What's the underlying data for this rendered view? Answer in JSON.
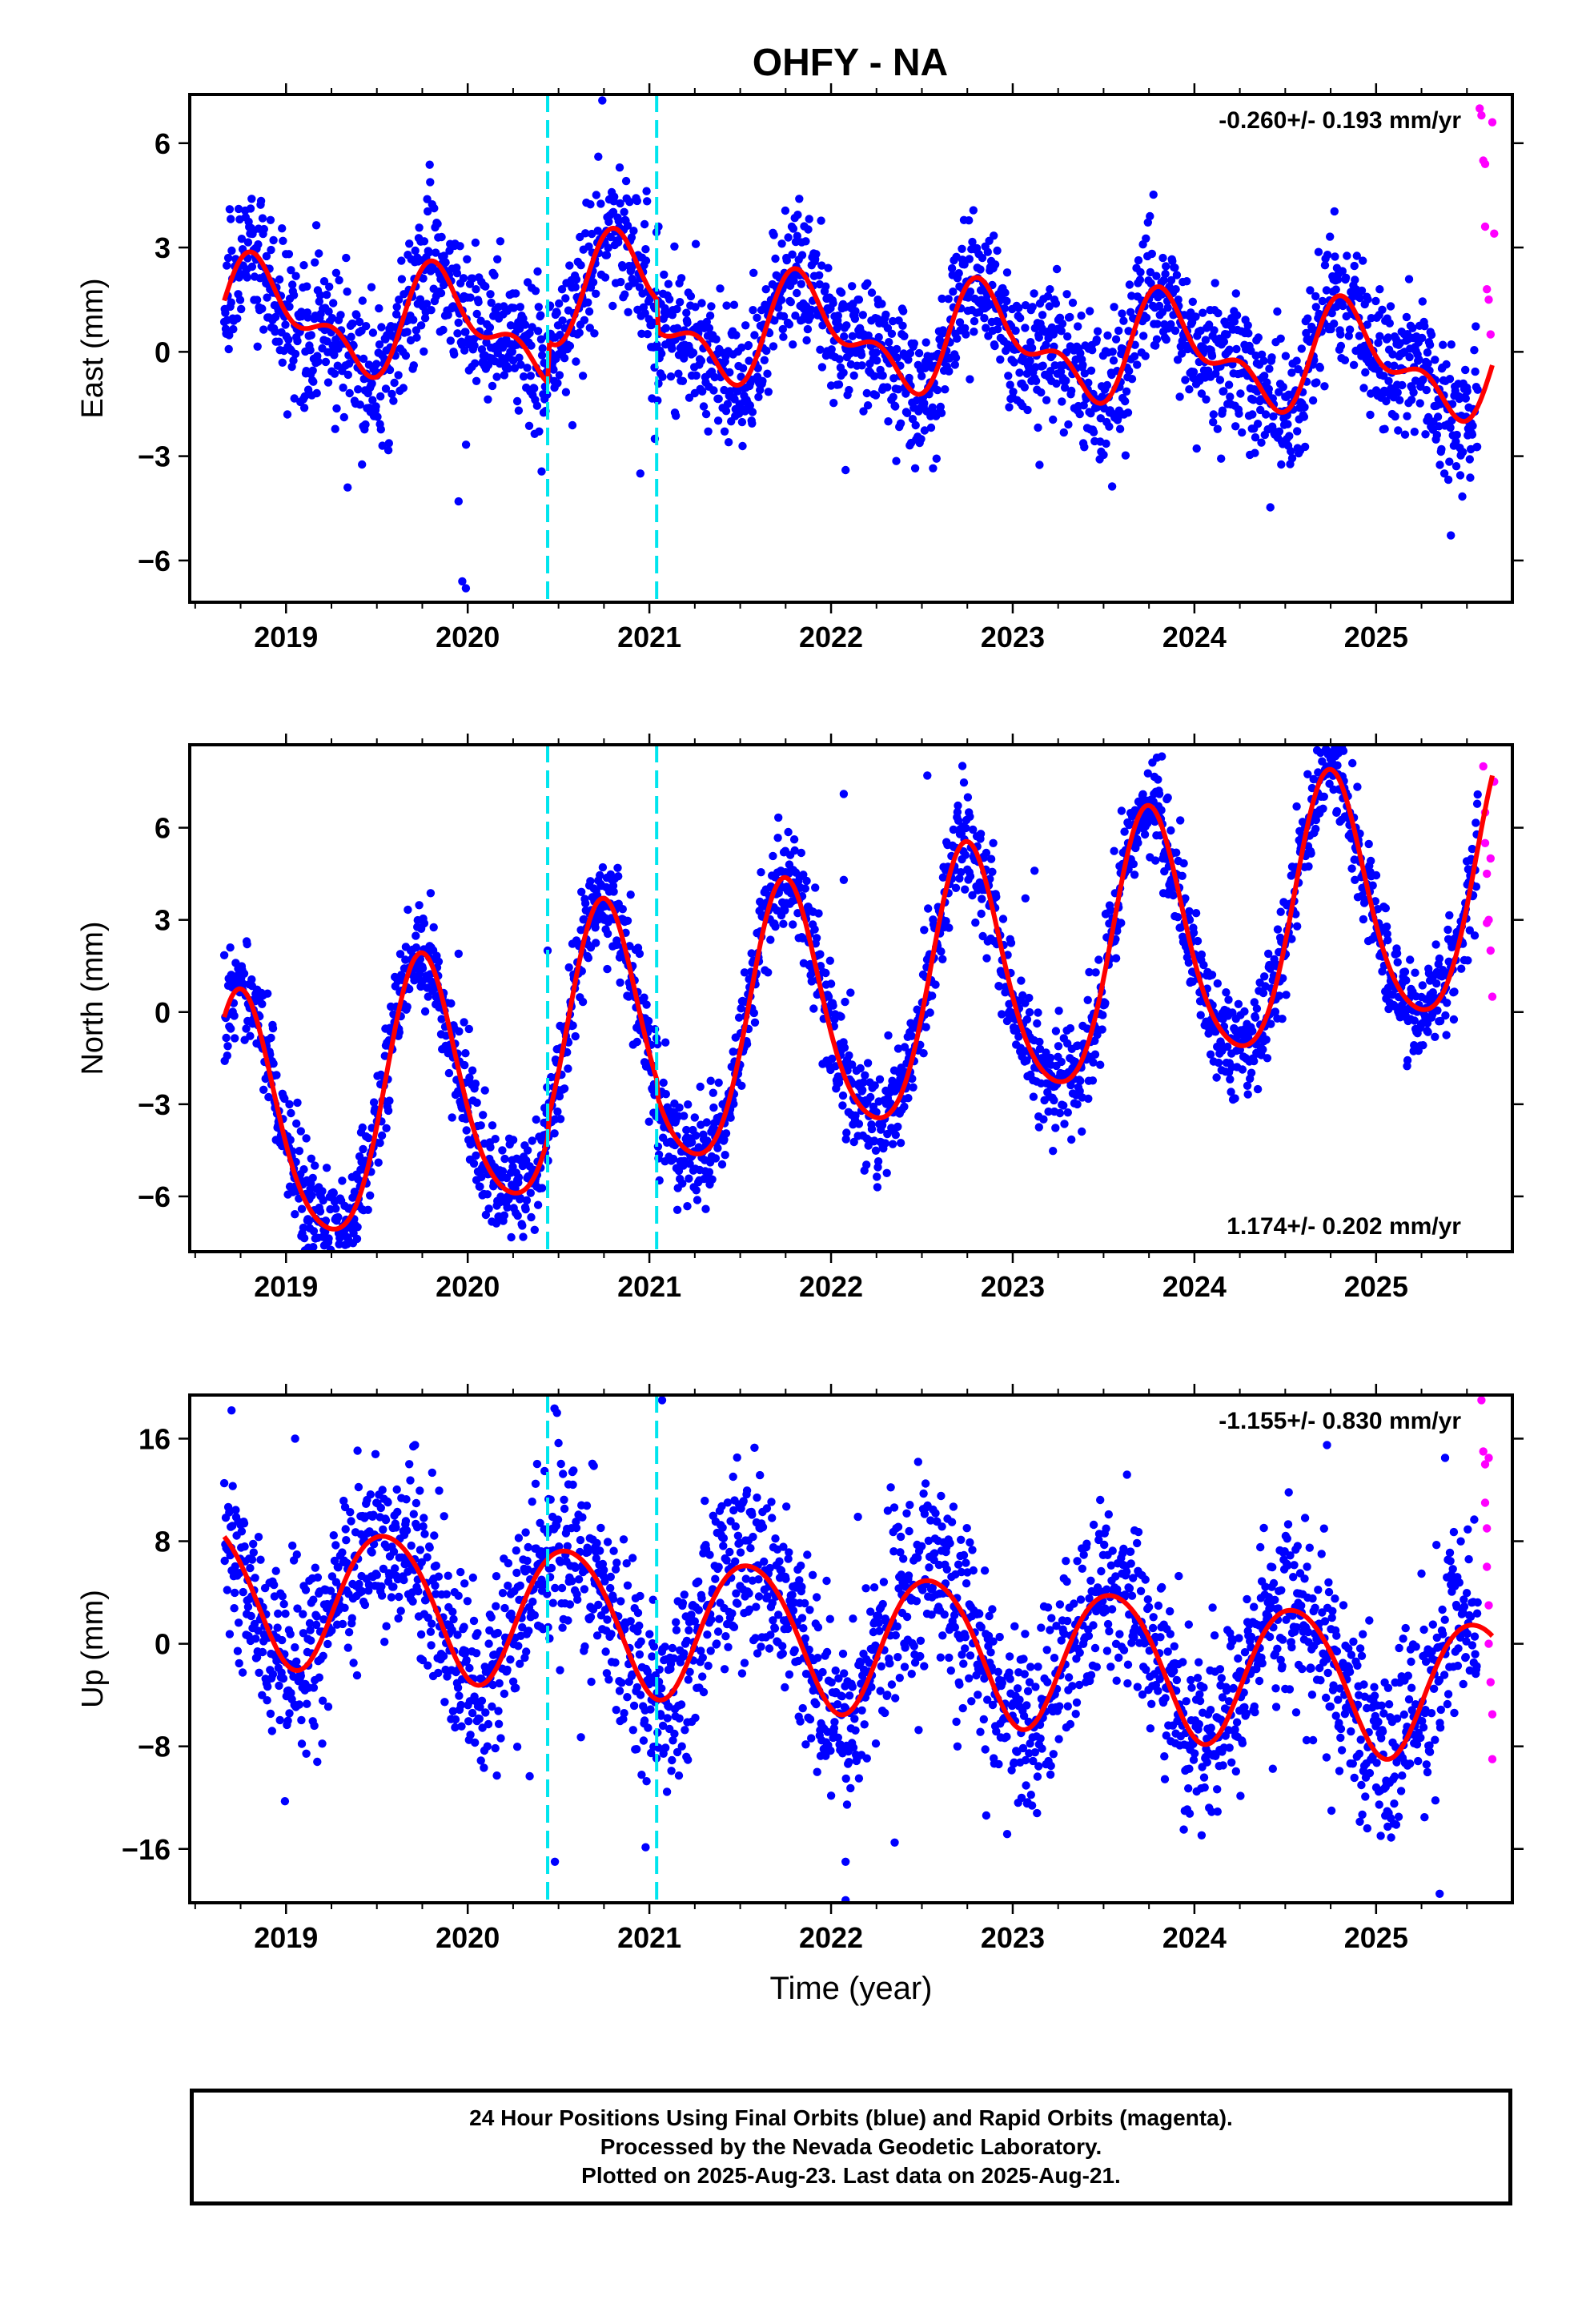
{
  "title": "OHFY - NA",
  "colors": {
    "final_orbits": "#0000ff",
    "rapid_orbits": "#ff00ff",
    "model": "#ff0000",
    "equipment_change": "#00e5ee",
    "axis": "#000000"
  },
  "footer": {
    "line1": "24 Hour Positions Using Final Orbits (blue) and Rapid Orbits (magenta).",
    "line2": "Processed by the Nevada Geodetic Laboratory.",
    "line3": "Plotted on 2025-Aug-23. Last data on 2025-Aug-21."
  },
  "chart_data": [
    {
      "type": "scatter",
      "title": "OHFY - NA",
      "xlabel": "",
      "ylabel": "East (mm)",
      "xlim": [
        2018.47,
        2025.75
      ],
      "ylim": [
        -7.2,
        7.4
      ],
      "x_ticks": [
        2019,
        2020,
        2021,
        2022,
        2023,
        2024,
        2025
      ],
      "y_ticks": [
        -6,
        -3,
        0,
        3,
        6
      ],
      "velocity": "-0.260+/- 0.193 mm/yr",
      "velocity_position": "top-right",
      "equipment_changes": [
        2020.44,
        2021.04
      ],
      "model": {
        "offset": 0.2,
        "trend": -0.26,
        "annual_amp": 1.25,
        "annual_phase": 0.62,
        "semiannual_amp": 0.75,
        "semiannual_phase": 0.15,
        "steps": [
          [
            2020.44,
            1.2
          ],
          [
            2021.04,
            -0.9
          ]
        ]
      },
      "noise_sd": 1.0,
      "rapid": [
        [
          2025.57,
          7.0
        ],
        [
          2025.58,
          6.8
        ],
        [
          2025.59,
          5.5
        ],
        [
          2025.6,
          5.4
        ],
        [
          2025.6,
          3.6
        ],
        [
          2025.61,
          1.8
        ],
        [
          2025.62,
          1.5
        ],
        [
          2025.63,
          0.5
        ],
        [
          2025.64,
          6.6
        ],
        [
          2025.65,
          3.4
        ]
      ],
      "outliers": [
        [
          2019.95,
          -4.3
        ],
        [
          2019.97,
          -6.6
        ],
        [
          2019.99,
          -6.8
        ],
        [
          2021.05,
          3.6
        ],
        [
          2020.95,
          -3.5
        ],
        [
          2021.03,
          -2.5
        ],
        [
          2022.08,
          -3.4
        ],
        [
          2025.02,
          1.8
        ]
      ],
      "series": [
        {
          "name": "Final Orbits",
          "values": []
        },
        {
          "name": "Rapid Orbits",
          "values": []
        },
        {
          "name": "",
          "values": []
        }
      ]
    },
    {
      "type": "scatter",
      "title": "",
      "xlabel": "",
      "ylabel": "North (mm)",
      "xlim": [
        2018.47,
        2025.75
      ],
      "ylim": [
        -7.8,
        8.7
      ],
      "x_ticks": [
        2019,
        2020,
        2021,
        2022,
        2023,
        2024,
        2025
      ],
      "y_ticks": [
        -6,
        -3,
        0,
        3,
        6
      ],
      "velocity": "1.174+/- 0.202 mm/yr",
      "velocity_position": "bottom-right",
      "equipment_changes": [
        2020.44,
        2021.04
      ],
      "model": {
        "offset": -0.2,
        "trend": 1.174,
        "annual_amp": 4.2,
        "annual_phase": 0.5,
        "semiannual_amp": 0.6,
        "semiannual_phase": 0.1,
        "steps": [
          [
            2020.44,
            0.6
          ],
          [
            2021.04,
            -0.5
          ]
        ]
      },
      "noise_sd": 0.9,
      "rapid": [
        [
          2025.59,
          8.0
        ],
        [
          2025.6,
          6.5
        ],
        [
          2025.6,
          5.5
        ],
        [
          2025.61,
          4.5
        ],
        [
          2025.62,
          3.0
        ],
        [
          2025.63,
          2.0
        ],
        [
          2025.64,
          0.5
        ],
        [
          2025.65,
          7.5
        ],
        [
          2025.63,
          5.0
        ],
        [
          2025.61,
          2.9
        ]
      ],
      "outliers": [
        [
          2019.95,
          1.9
        ],
        [
          2020.44,
          2.0
        ],
        [
          2022.07,
          7.1
        ],
        [
          2022.07,
          4.3
        ],
        [
          2023.07,
          3.7
        ],
        [
          2022.53,
          7.7
        ],
        [
          2023.12,
          4.6
        ]
      ],
      "series": [
        {
          "name": "Final Orbits",
          "values": []
        },
        {
          "name": "Rapid Orbits",
          "values": []
        },
        {
          "name": "",
          "values": []
        }
      ]
    },
    {
      "type": "scatter",
      "title": "",
      "xlabel": "Time (year)",
      "ylabel": "Up (mm)",
      "xlim": [
        2018.47,
        2025.75
      ],
      "ylim": [
        -20.2,
        19.4
      ],
      "x_ticks": [
        2019,
        2020,
        2021,
        2022,
        2023,
        2024,
        2025
      ],
      "y_ticks": [
        -16,
        -8,
        0,
        8,
        16
      ],
      "velocity": "-1.155+/- 0.830 mm/yr",
      "velocity_position": "top-right",
      "equipment_changes": [
        2020.44,
        2021.04
      ],
      "model": {
        "offset": 0.5,
        "trend": -1.155,
        "annual_amp": 5.5,
        "annual_phase": 0.3,
        "semiannual_amp": 0.5,
        "semiannual_phase": 0.2,
        "steps": []
      },
      "noise_sd": 3.6,
      "rapid": [
        [
          2025.58,
          19.0
        ],
        [
          2025.59,
          15.0
        ],
        [
          2025.6,
          14.0
        ],
        [
          2025.6,
          11.0
        ],
        [
          2025.61,
          9.0
        ],
        [
          2025.62,
          3.0
        ],
        [
          2025.62,
          0.0
        ],
        [
          2025.63,
          -3.0
        ],
        [
          2025.64,
          -5.5
        ],
        [
          2025.64,
          -9.0
        ],
        [
          2025.62,
          14.5
        ],
        [
          2025.61,
          6.0
        ]
      ],
      "outliers": [
        [
          2018.7,
          18.2
        ],
        [
          2019.05,
          16.0
        ],
        [
          2019.71,
          15.5
        ],
        [
          2020.48,
          -17.0
        ],
        [
          2021.07,
          19.0
        ],
        [
          2022.08,
          -17.0
        ],
        [
          2022.08,
          -20.0
        ],
        [
          2022.35,
          -15.5
        ],
        [
          2025.35,
          -19.5
        ],
        [
          2024.73,
          15.5
        ],
        [
          2025.38,
          14.5
        ]
      ],
      "series": [
        {
          "name": "Final Orbits",
          "values": []
        },
        {
          "name": "Rapid Orbits",
          "values": []
        },
        {
          "name": "",
          "values": []
        }
      ]
    }
  ]
}
